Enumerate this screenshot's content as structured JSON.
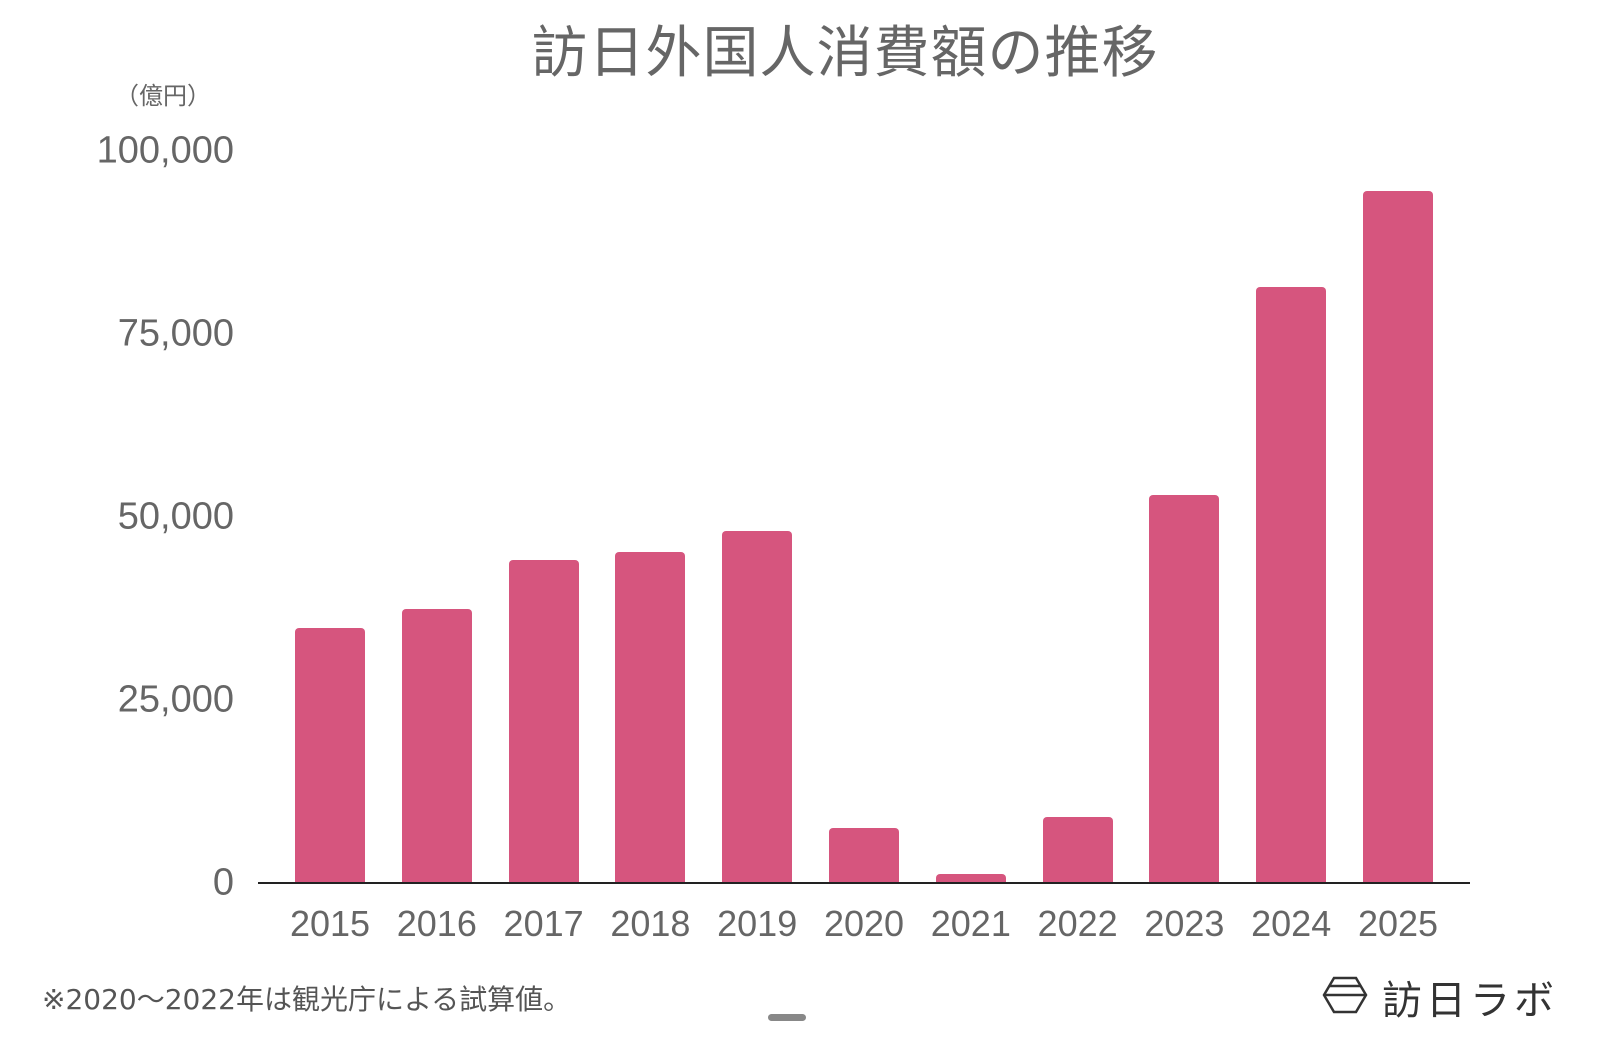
{
  "title": "訪日外国人消費額の推移",
  "unit_label": "（億円）",
  "note": "※2020〜2022年は観光庁による試算値。",
  "brand": {
    "name": "訪日ラボ",
    "logo_icon": "hexagon-logo-icon"
  },
  "colors": {
    "bar": "#d6557e",
    "text": "#666666",
    "axis": "#222222"
  },
  "y_ticks": [
    "100,000",
    "75,000",
    "50,000",
    "25,000",
    "0"
  ],
  "chart_data": {
    "type": "bar",
    "title": "訪日外国人消費額の推移",
    "xlabel": "",
    "ylabel": "（億円）",
    "ylim": [
      0,
      100000
    ],
    "y_ticks": [
      0,
      25000,
      50000,
      75000,
      100000
    ],
    "grid": false,
    "legend": null,
    "categories": [
      "2015",
      "2016",
      "2017",
      "2018",
      "2019",
      "2020",
      "2021",
      "2022",
      "2023",
      "2024",
      "2025"
    ],
    "values": [
      34771,
      37476,
      44162,
      45189,
      48135,
      7446,
      1208,
      8987,
      53065,
      81395,
      94559
    ],
    "annotations": [
      "※2020〜2022年は観光庁による試算値。"
    ]
  }
}
